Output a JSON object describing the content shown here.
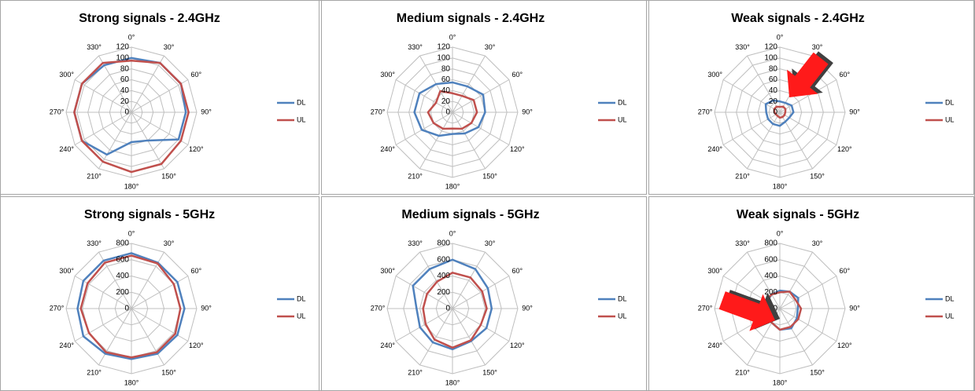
{
  "chart_data": [
    {
      "type": "radar",
      "title": "Strong signals - 2.4GHz",
      "categories": [
        "0°",
        "30°",
        "60°",
        "90°",
        "120°",
        "150°",
        "180°",
        "210°",
        "240°",
        "270°",
        "300°",
        "330°"
      ],
      "rlim": [
        0,
        120
      ],
      "rticks": [
        0,
        20,
        40,
        60,
        80,
        100,
        120
      ],
      "series": [
        {
          "name": "DL",
          "color": "#4f81bd",
          "values": [
            100,
            105,
            105,
            100,
            100,
            60,
            55,
            90,
            105,
            105,
            105,
            100
          ]
        },
        {
          "name": "UL",
          "color": "#c0504d",
          "values": [
            95,
            105,
            105,
            105,
            105,
            110,
            110,
            105,
            105,
            105,
            105,
            105
          ]
        }
      ]
    },
    {
      "type": "radar",
      "title": "Medium signals - 2.4GHz",
      "categories": [
        "0°",
        "30°",
        "60°",
        "90°",
        "120°",
        "150°",
        "180°",
        "210°",
        "240°",
        "270°",
        "300°",
        "330°"
      ],
      "rlim": [
        0,
        120
      ],
      "rticks": [
        0,
        20,
        40,
        60,
        80,
        100,
        120
      ],
      "series": [
        {
          "name": "DL",
          "color": "#4f81bd",
          "values": [
            55,
            55,
            65,
            60,
            55,
            45,
            40,
            50,
            65,
            70,
            70,
            60
          ]
        },
        {
          "name": "UL",
          "color": "#c0504d",
          "values": [
            35,
            35,
            45,
            45,
            40,
            35,
            30,
            35,
            40,
            45,
            35,
            45
          ]
        }
      ]
    },
    {
      "type": "radar",
      "title": "Weak signals - 2.4GHz",
      "categories": [
        "0°",
        "30°",
        "60°",
        "90°",
        "120°",
        "150°",
        "180°",
        "210°",
        "240°",
        "270°",
        "300°",
        "330°"
      ],
      "rlim": [
        0,
        120
      ],
      "rticks": [
        0,
        20,
        40,
        60,
        80,
        100,
        120
      ],
      "series": [
        {
          "name": "DL",
          "color": "#4f81bd",
          "values": [
            20,
            20,
            25,
            25,
            20,
            20,
            25,
            25,
            25,
            25,
            30,
            25
          ]
        },
        {
          "name": "UL",
          "color": "#c0504d",
          "values": [
            10,
            12,
            12,
            10,
            10,
            10,
            10,
            8,
            8,
            10,
            12,
            12
          ]
        }
      ]
    },
    {
      "type": "radar",
      "title": "Strong signals - 5GHz",
      "categories": [
        "0°",
        "30°",
        "60°",
        "90°",
        "120°",
        "150°",
        "180°",
        "210°",
        "240°",
        "270°",
        "300°",
        "330°"
      ],
      "rlim": [
        0,
        800
      ],
      "rticks": [
        0,
        200,
        400,
        600,
        800
      ],
      "series": [
        {
          "name": "DL",
          "color": "#4f81bd",
          "values": [
            680,
            650,
            650,
            650,
            650,
            640,
            620,
            640,
            680,
            660,
            680,
            680
          ]
        },
        {
          "name": "UL",
          "color": "#c0504d",
          "values": [
            650,
            640,
            600,
            600,
            620,
            620,
            600,
            620,
            600,
            620,
            620,
            650
          ]
        }
      ]
    },
    {
      "type": "radar",
      "title": "Medium signals - 5GHz",
      "categories": [
        "0°",
        "30°",
        "60°",
        "90°",
        "120°",
        "150°",
        "180°",
        "210°",
        "240°",
        "270°",
        "300°",
        "330°"
      ],
      "rlim": [
        0,
        800
      ],
      "rticks": [
        0,
        200,
        400,
        600,
        800
      ],
      "series": [
        {
          "name": "DL",
          "color": "#4f81bd",
          "values": [
            600,
            560,
            500,
            480,
            480,
            460,
            500,
            480,
            460,
            440,
            560,
            560
          ]
        },
        {
          "name": "UL",
          "color": "#c0504d",
          "values": [
            440,
            440,
            420,
            420,
            400,
            450,
            480,
            440,
            380,
            360,
            360,
            380
          ]
        }
      ]
    },
    {
      "type": "radar",
      "title": "Weak signals - 5GHz",
      "categories": [
        "0°",
        "30°",
        "60°",
        "90°",
        "120°",
        "150°",
        "180°",
        "210°",
        "240°",
        "270°",
        "300°",
        "330°"
      ],
      "rlim": [
        0,
        800
      ],
      "rticks": [
        0,
        200,
        400,
        600,
        800
      ],
      "series": [
        {
          "name": "DL",
          "color": "#4f81bd",
          "values": [
            220,
            240,
            260,
            220,
            240,
            280,
            260,
            200,
            100,
            200,
            180,
            200
          ]
        },
        {
          "name": "UL",
          "color": "#c0504d",
          "values": [
            200,
            240,
            220,
            260,
            260,
            260,
            260,
            200,
            200,
            160,
            200,
            200
          ]
        }
      ]
    }
  ]
}
